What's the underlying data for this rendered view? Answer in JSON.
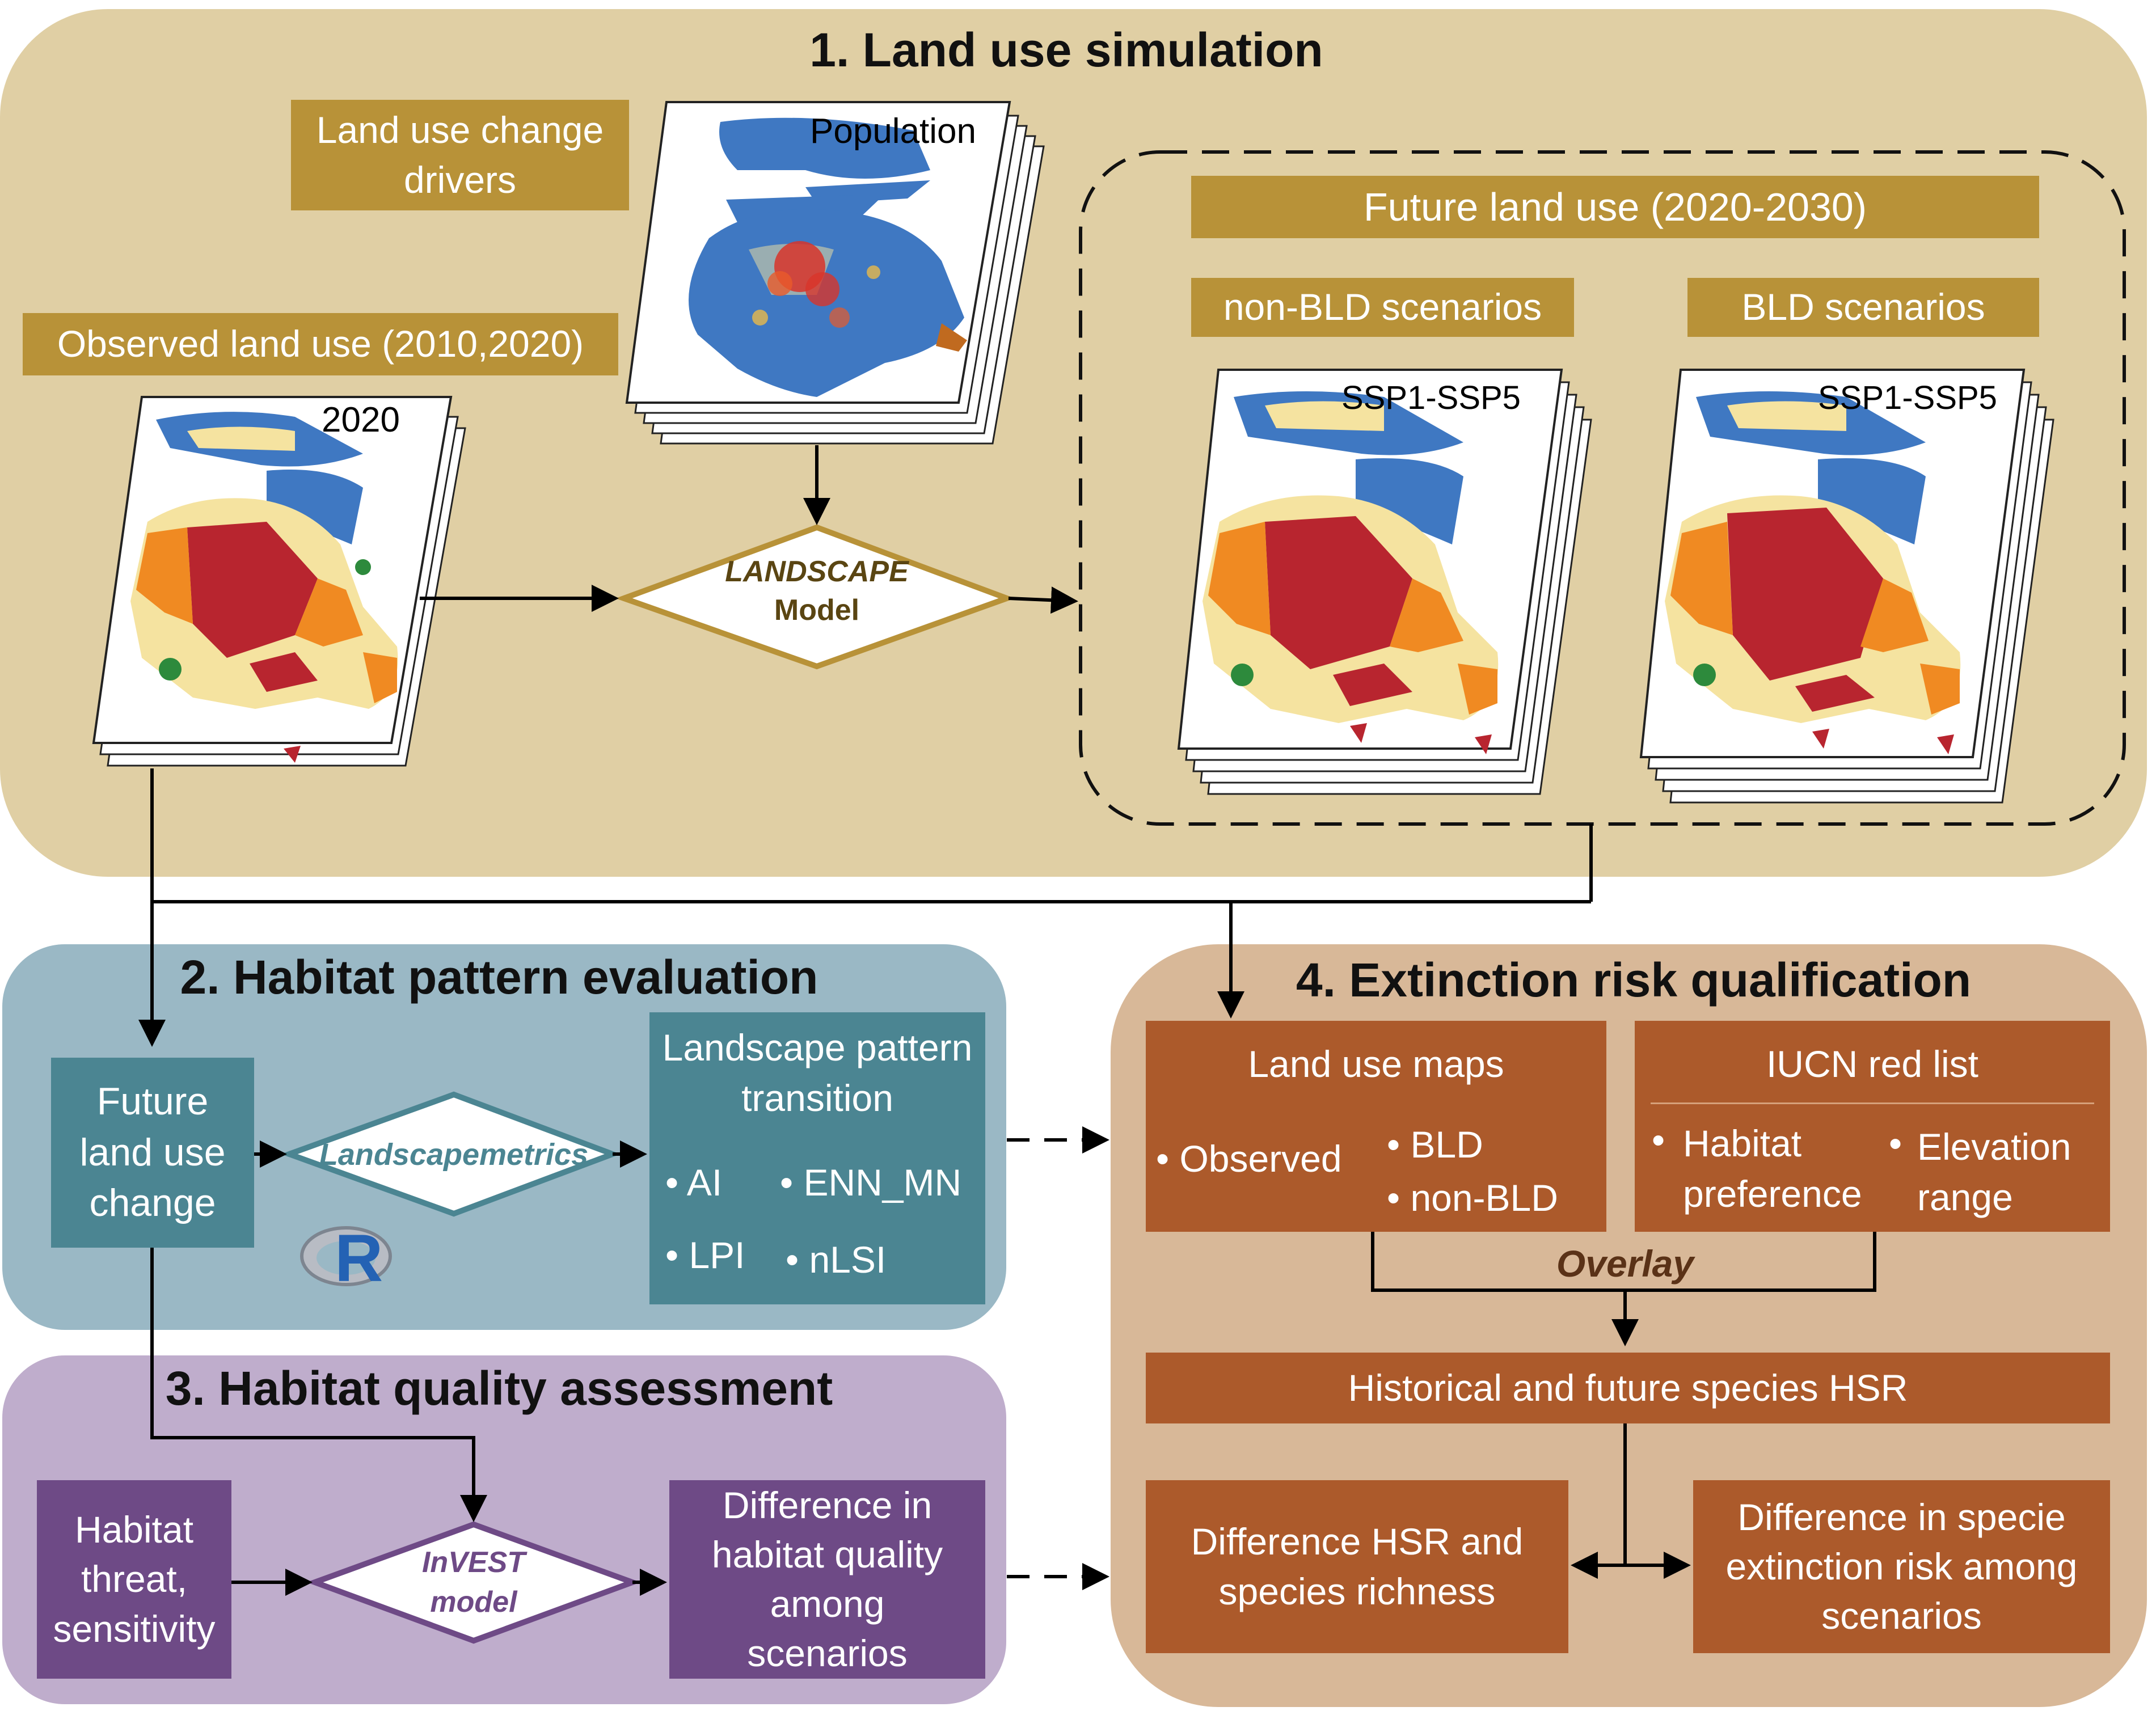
{
  "panels": {
    "p1": {
      "title": "1. Land use simulation"
    },
    "p2": {
      "title": "2. Habitat pattern evaluation"
    },
    "p3": {
      "title": "3. Habitat quality assessment"
    },
    "p4": {
      "title": "4. Extinction risk qualification"
    }
  },
  "land": {
    "drivers": "Land use change drivers",
    "observed": "Observed land use (2010,2020)",
    "map_2020_label": "2020",
    "population_label": "Population",
    "future": "Future land use (2020-2030)",
    "non_bld": "non-BLD scenarios",
    "bld": "BLD scenarios",
    "ssp_label_1": "SSP1-SSP5",
    "ssp_label_2": "SSP1-SSP5",
    "model_line1": "LANDSCAPE",
    "model_line2": "Model"
  },
  "pattern": {
    "future_change": "Future land use change",
    "landscapemetrics": "Landscapemetrics",
    "transition_title": "Landscape pattern transition",
    "metrics": [
      "• AI",
      "• ENN_MN",
      "• LPI",
      "• nLSI"
    ],
    "r_logo": "R"
  },
  "quality": {
    "threat": "Habitat threat, sensitivity",
    "invest_line1": "InVEST",
    "invest_line2": "model",
    "difference": "Difference in habitat quality among scenarios"
  },
  "risk": {
    "land_use_maps": "Land use maps",
    "observed": "• Observed",
    "bld": "• BLD",
    "non_bld": "• non-BLD",
    "iucn": "IUCN red list",
    "habitat_pref_bullet": "•",
    "habitat_pref": "Habitat preference",
    "elevation_bullet": "•",
    "elevation": "Elevation range",
    "overlay": "Overlay",
    "hsr": "Historical and future species HSR",
    "diff_hsr": "Difference HSR  and species richness",
    "diff_ext": "Difference in specie extinction risk among scenarios"
  },
  "colors": {
    "panel1": "#e0cfa4",
    "panel2": "#9ab8c5",
    "panel3": "#bfadcc",
    "panel4": "#d8b898",
    "tan_box": "#b89238",
    "teal_box": "#4b8592",
    "purple_box": "#6e4a86",
    "rust_box": "#ac5a2b",
    "urban": "#b8252f",
    "water": "#3f78c2",
    "crop": "#f5e3a0",
    "orange": "#f08a22"
  }
}
